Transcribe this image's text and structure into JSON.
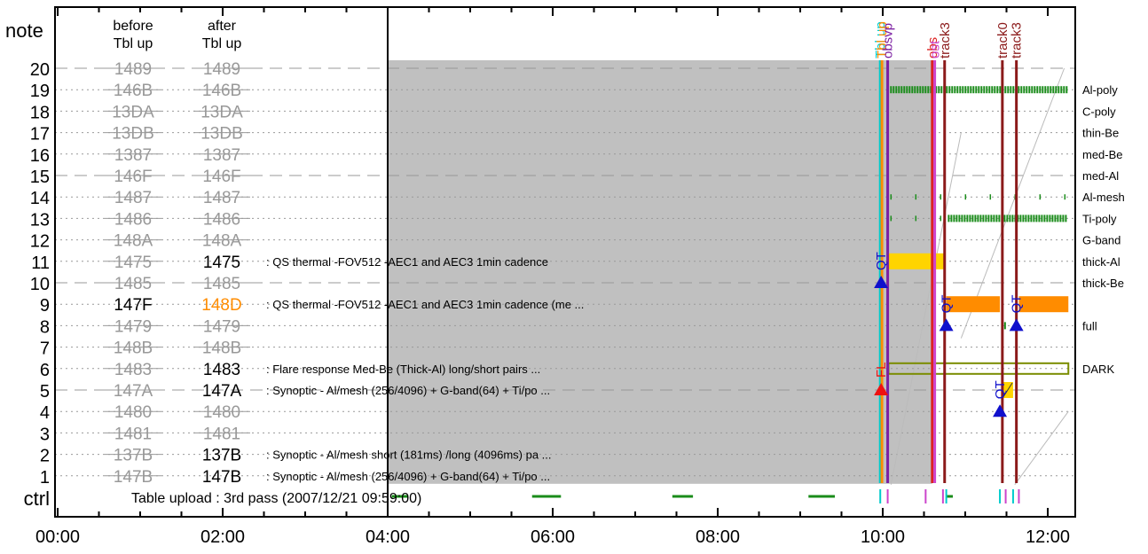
{
  "chart_data": {
    "type": "timeline",
    "corner_label": "note",
    "ctrl_label": "ctrl",
    "col_before_label": [
      "before",
      "Tbl up"
    ],
    "col_after_label": [
      "after",
      "Tbl up"
    ],
    "x_ticks": [
      "00:00",
      "02:00",
      "04:00",
      "06:00",
      "08:00",
      "10:00",
      "12:00"
    ],
    "x_range_hours": [
      0,
      12.25
    ],
    "rows": [
      {
        "n": 20,
        "before": "1489",
        "after": "1489",
        "after_active": false,
        "after_color": "#999999",
        "filter": "",
        "desc": "",
        "dashed": true
      },
      {
        "n": 19,
        "before": "146B",
        "after": "146B",
        "after_active": false,
        "after_color": "#999999",
        "filter": "Al-poly",
        "desc": "",
        "dashed": false
      },
      {
        "n": 18,
        "before": "13DA",
        "after": "13DA",
        "after_active": false,
        "after_color": "#999999",
        "filter": "C-poly",
        "desc": "",
        "dashed": false
      },
      {
        "n": 17,
        "before": "13DB",
        "after": "13DB",
        "after_active": false,
        "after_color": "#999999",
        "filter": "thin-Be",
        "desc": "",
        "dashed": false
      },
      {
        "n": 16,
        "before": "1387",
        "after": "1387",
        "after_active": false,
        "after_color": "#999999",
        "filter": "med-Be",
        "desc": "",
        "dashed": false
      },
      {
        "n": 15,
        "before": "146F",
        "after": "146F",
        "after_active": false,
        "after_color": "#999999",
        "filter": "med-Al",
        "desc": "",
        "dashed": true
      },
      {
        "n": 14,
        "before": "1487",
        "after": "1487",
        "after_active": false,
        "after_color": "#999999",
        "filter": "Al-mesh",
        "desc": "",
        "dashed": false
      },
      {
        "n": 13,
        "before": "1486",
        "after": "1486",
        "after_active": false,
        "after_color": "#999999",
        "filter": "Ti-poly",
        "desc": "",
        "dashed": false
      },
      {
        "n": 12,
        "before": "148A",
        "after": "148A",
        "after_active": false,
        "after_color": "#999999",
        "filter": "G-band",
        "desc": "",
        "dashed": false
      },
      {
        "n": 11,
        "before": "1475",
        "after": "1475",
        "after_active": true,
        "after_color": "#000000",
        "filter": "thick-Al",
        "desc": ": QS thermal -FOV512 -AEC1 and AEC3 1min cadence",
        "dashed": false
      },
      {
        "n": 10,
        "before": "1485",
        "after": "1485",
        "after_active": false,
        "after_color": "#999999",
        "filter": "thick-Be",
        "desc": "",
        "dashed": true
      },
      {
        "n": 9,
        "before": "147F",
        "before_active": true,
        "after": "148D",
        "after_active": true,
        "after_color": "#ff8c00",
        "filter": "",
        "desc": ": QS thermal -FOV512 -AEC1 and AEC3 1min cadence (me ...",
        "dashed": false
      },
      {
        "n": 8,
        "before": "1479",
        "after": "1479",
        "after_active": false,
        "after_color": "#999999",
        "filter": "full",
        "desc": "",
        "dashed": false
      },
      {
        "n": 7,
        "before": "148B",
        "after": "148B",
        "after_active": false,
        "after_color": "#999999",
        "filter": "",
        "desc": "",
        "dashed": false
      },
      {
        "n": 6,
        "before": "1483",
        "after": "1483",
        "after_active": true,
        "after_color": "#000000",
        "filter": "DARK",
        "desc": ": Flare response Med-Be (Thick-Al) long/short pairs  ...",
        "dashed": false
      },
      {
        "n": 5,
        "before": "147A",
        "after": "147A",
        "after_active": true,
        "after_color": "#000000",
        "filter": "",
        "desc": ": Synoptic - Al/mesh (256/4096) + G-band(64) + Ti/po ...",
        "dashed": true
      },
      {
        "n": 4,
        "before": "1480",
        "after": "1480",
        "after_active": false,
        "after_color": "#999999",
        "filter": "",
        "desc": "",
        "dashed": false
      },
      {
        "n": 3,
        "before": "1481",
        "after": "1481",
        "after_active": false,
        "after_color": "#999999",
        "filter": "",
        "desc": "",
        "dashed": false
      },
      {
        "n": 2,
        "before": "137B",
        "after": "137B",
        "after_active": true,
        "after_color": "#000000",
        "filter": "",
        "desc": ": Synoptic - Al/mesh short (181ms) /long (4096ms) pa ...",
        "dashed": false
      },
      {
        "n": 1,
        "before": "147B",
        "after": "147B",
        "after_active": true,
        "after_color": "#000000",
        "filter": "",
        "desc": ": Synoptic - Al/mesh (256/4096) + G-band(64) + Ti/po ...",
        "dashed": false
      }
    ],
    "ctrl_text": "Table upload : 3rd pass (2007/12/21 09:59:00)",
    "shaded_region": {
      "start": 4.0,
      "end": 10.6,
      "rows": [
        1,
        20
      ],
      "color": "#c0c0c0"
    },
    "event_lines": [
      {
        "label": "Tbl up",
        "t": 9.97,
        "color": "#00cccc"
      },
      {
        "label": "Tbl up",
        "t": 9.99,
        "color": "#ff8c00"
      },
      {
        "label": "obsvp",
        "t": 10.06,
        "color": "#7b1fa2"
      },
      {
        "label": "obs",
        "t": 10.6,
        "color": "#dd2222"
      },
      {
        "label": "ost",
        "t": 10.63,
        "color": "#cc44cc"
      },
      {
        "label": "track3",
        "t": 10.75,
        "color": "#8b1a1a"
      },
      {
        "label": "track0",
        "t": 11.45,
        "color": "#8b1a1a"
      },
      {
        "label": "track3",
        "t": 11.62,
        "color": "#8b1a1a"
      }
    ],
    "bars": [
      {
        "row": 11,
        "start": 10.07,
        "end": 10.75,
        "color": "#ffd400"
      },
      {
        "row": 9,
        "start": 10.77,
        "end": 11.42,
        "color": "#ff8c00"
      },
      {
        "row": 9,
        "start": 11.65,
        "end": 12.25,
        "color": "#ff8c00"
      },
      {
        "row": 5,
        "start": 11.45,
        "end": 11.58,
        "color": "#ffd400"
      }
    ],
    "hatched": [
      {
        "row": 19,
        "start": 10.1,
        "end": 12.25,
        "color": "#1a8c1a",
        "density": "dense"
      },
      {
        "row": 13,
        "start": 10.8,
        "end": 12.25,
        "color": "#1a8c1a",
        "density": "dense"
      },
      {
        "row": 14,
        "start": 10.1,
        "end": 12.25,
        "color": "#1a8c1a",
        "density": "sparse"
      },
      {
        "row": 13,
        "start": 10.1,
        "end": 10.8,
        "color": "#1a8c1a",
        "density": "sparse"
      },
      {
        "row": 8,
        "start": 11.45,
        "end": 11.49,
        "color": "#1a8c1a",
        "density": "dense"
      }
    ],
    "dark_band": {
      "row": 6,
      "start": 10.07,
      "end": 12.25,
      "color": "#7a8c00"
    },
    "markers": [
      {
        "label": "QT",
        "t": 9.98,
        "row": 10,
        "color": "#1010cc"
      },
      {
        "label": "FL",
        "t": 9.98,
        "row": 5,
        "color": "#ee1111"
      },
      {
        "label": "QT",
        "t": 10.77,
        "row": 8,
        "color": "#1010cc"
      },
      {
        "label": "QT",
        "t": 11.42,
        "row": 4,
        "color": "#1010cc"
      },
      {
        "label": "QT",
        "t": 11.62,
        "row": 8,
        "color": "#1010cc"
      }
    ],
    "ctrl_segments": [
      {
        "start": 4.05,
        "end": 4.25,
        "color": "#1a8c1a"
      },
      {
        "start": 5.75,
        "end": 6.1,
        "color": "#1a8c1a"
      },
      {
        "start": 7.45,
        "end": 7.7,
        "color": "#1a8c1a"
      },
      {
        "start": 9.1,
        "end": 9.42,
        "color": "#1a8c1a"
      },
      {
        "start": 10.77,
        "end": 10.85,
        "color": "#1a8c1a"
      }
    ],
    "ctrl_ticks": [
      {
        "t": 9.97,
        "color": "#00cccc"
      },
      {
        "t": 10.06,
        "color": "#cc44cc"
      },
      {
        "t": 10.52,
        "color": "#cc44cc"
      },
      {
        "t": 10.73,
        "color": "#cc44cc"
      },
      {
        "t": 10.77,
        "color": "#00cccc"
      },
      {
        "t": 11.42,
        "color": "#00cccc"
      },
      {
        "t": 11.49,
        "color": "#cc44cc"
      },
      {
        "t": 11.58,
        "color": "#00cccc"
      },
      {
        "t": 11.65,
        "color": "#cc44cc"
      }
    ]
  }
}
